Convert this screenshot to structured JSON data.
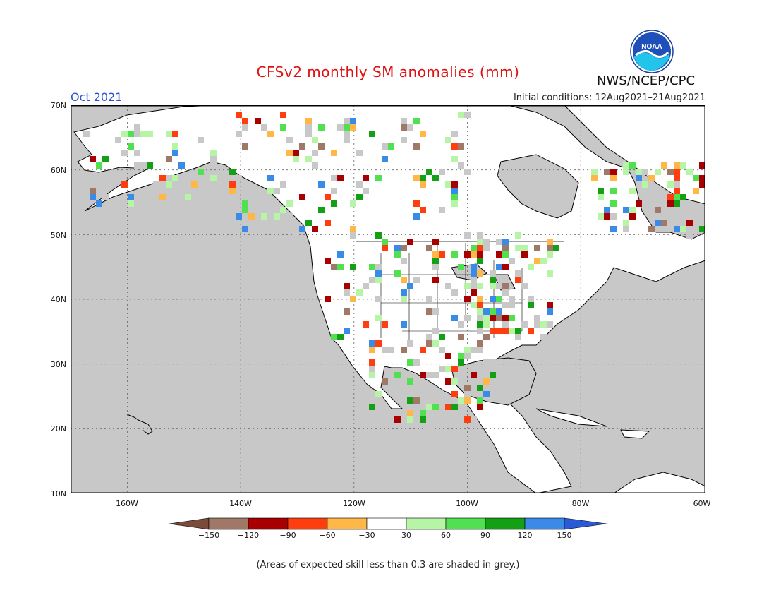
{
  "header": {
    "title": "CFSv2 monthly SM anomalies (mm)",
    "target_month": "Oct 2021",
    "initial_conditions": "Initial conditions: 12Aug2021–21Aug2021",
    "agency_label": "NWS/NCEP/CPC",
    "logo_text": "NOAA"
  },
  "map": {
    "lat_labels": [
      "70N",
      "60N",
      "50N",
      "40N",
      "30N",
      "20N",
      "10N"
    ],
    "lon_labels": [
      "160W",
      "140W",
      "120W",
      "100W",
      "80W",
      "60W"
    ],
    "extent": {
      "lon_min": -172,
      "lon_max": -60,
      "lat_min": 10,
      "lat_max": 70
    },
    "grid_lines": true
  },
  "colorbar": {
    "tick_labels": [
      "−150",
      "−120",
      "−90",
      "−60",
      "−30",
      "30",
      "60",
      "90",
      "120",
      "150"
    ],
    "colors": [
      "#7a4a3a",
      "#a07868",
      "#a80000",
      "#ff3e10",
      "#ffb847",
      "#ffffff",
      "#b6f5a6",
      "#50e050",
      "#14a014",
      "#3a8ae8",
      "#2a5ad8"
    ]
  },
  "footer": {
    "note": "(Areas of expected skill less than 0.3 are shaded in grey.)"
  },
  "colors": {
    "ocean_grey": "#c8c8c8",
    "land_white": "#ffffff",
    "title_red": "#e01010",
    "month_blue": "#2a4fd8"
  }
}
